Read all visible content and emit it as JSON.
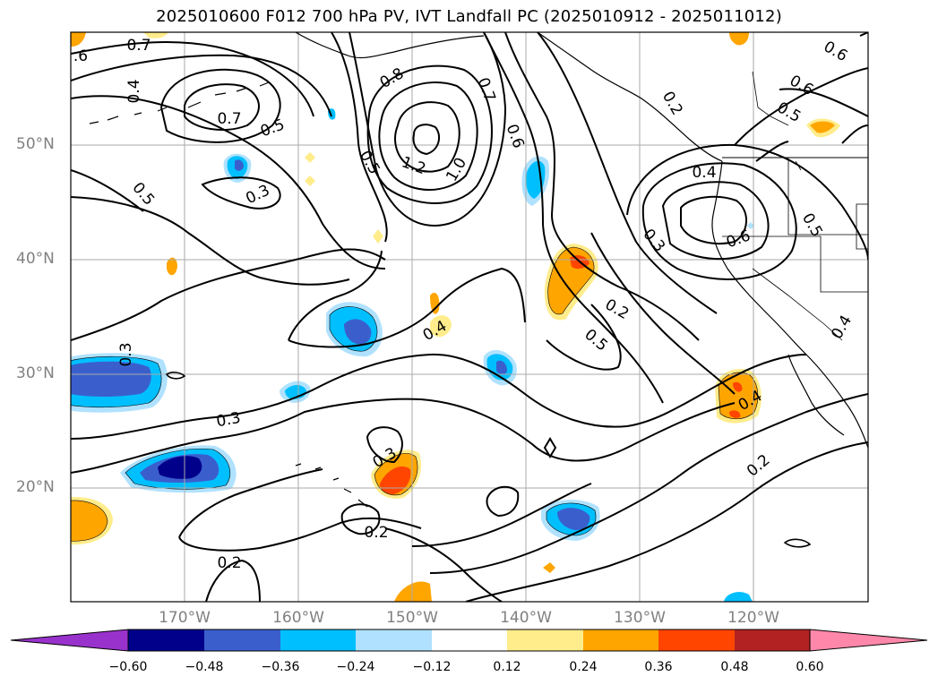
{
  "title": "2025010600 F012 700 hPa PV, IVT Landfall PC (2025010912 - 2025011012)",
  "lat_labels": [
    "50°N",
    "40°N",
    "30°N",
    "20°N"
  ],
  "lon_labels": [
    "170°W",
    "160°W",
    "150°W",
    "140°W",
    "130°W",
    "120°W"
  ],
  "contour_labels": [
    "0.7",
    ".6",
    "0.4",
    "0.7",
    "0.5",
    "0.5",
    "0.3",
    "0.8",
    "0.7",
    "0.6",
    "1.2",
    "1.0",
    "0.5",
    "0.2",
    "0.6",
    "0.5",
    "0.6",
    "0.3",
    "0.6",
    "0.5",
    "0.4",
    "0.2",
    "0.5",
    "0.3",
    "0.4",
    "0.3",
    "0.3",
    "0.2",
    "0.2",
    "0.4",
    "0.2",
    "0.4"
  ],
  "colorbar": {
    "ticks": [
      "−0.60",
      "−0.48",
      "−0.36",
      "−0.24",
      "−0.12",
      "0.12",
      "0.24",
      "0.36",
      "0.48",
      "0.60"
    ],
    "colors": [
      "#9932cc",
      "#00008b",
      "#3a5fcd",
      "#00bfff",
      "#b0e2ff",
      "#ffffff",
      "#ffec8b",
      "#ffa500",
      "#ff4500",
      "#b22222",
      "#ff88aa"
    ]
  },
  "fill_colors": {
    "neg1": "#b0e2ff",
    "neg2": "#00bfff",
    "neg3": "#3a5fcd",
    "neg4": "#00008b",
    "pos1": "#ffec8b",
    "pos2": "#ffa500",
    "pos3": "#ff4500"
  }
}
